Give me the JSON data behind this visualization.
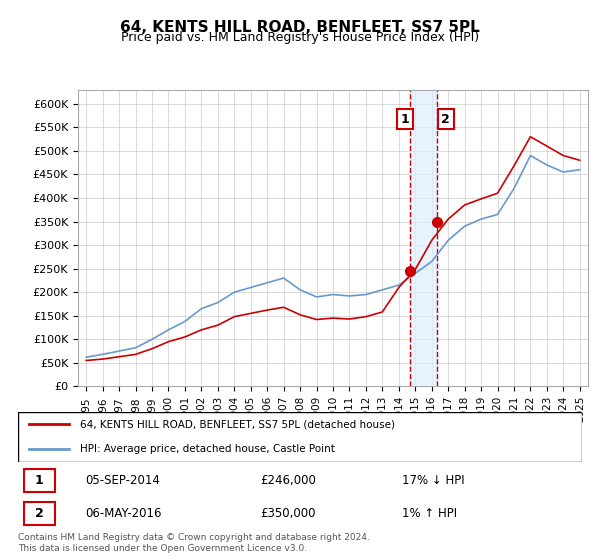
{
  "title": "64, KENTS HILL ROAD, BENFLEET, SS7 5PL",
  "subtitle": "Price paid vs. HM Land Registry's House Price Index (HPI)",
  "legend_label_red": "64, KENTS HILL ROAD, BENFLEET, SS7 5PL (detached house)",
  "legend_label_blue": "HPI: Average price, detached house, Castle Point",
  "footer": "Contains HM Land Registry data © Crown copyright and database right 2024.\nThis data is licensed under the Open Government Licence v3.0.",
  "sale1_date": "05-SEP-2014",
  "sale1_price": 246000,
  "sale1_pct": "17% ↓ HPI",
  "sale2_date": "06-MAY-2016",
  "sale2_price": 350000,
  "sale2_pct": "1% ↑ HPI",
  "ylim": [
    0,
    630000
  ],
  "yticks": [
    0,
    50000,
    100000,
    150000,
    200000,
    250000,
    300000,
    350000,
    400000,
    450000,
    500000,
    550000,
    600000
  ],
  "ytick_labels": [
    "£0",
    "£50K",
    "£100K",
    "£150K",
    "£200K",
    "£250K",
    "£300K",
    "£350K",
    "£400K",
    "£450K",
    "£500K",
    "£550K",
    "£600K"
  ],
  "color_red": "#cc0000",
  "color_blue": "#6699cc",
  "color_shade": "#ddeeff",
  "sale1_year": 2014.67,
  "sale2_year": 2016.35,
  "hpi_years": [
    1995,
    1996,
    1997,
    1998,
    1999,
    2000,
    2001,
    2002,
    2003,
    2004,
    2005,
    2006,
    2007,
    2008,
    2009,
    2010,
    2011,
    2012,
    2013,
    2014,
    2015,
    2016,
    2017,
    2018,
    2019,
    2020,
    2021,
    2022,
    2023,
    2024,
    2025
  ],
  "hpi_values": [
    62000,
    68000,
    75000,
    82000,
    100000,
    120000,
    138000,
    165000,
    178000,
    200000,
    210000,
    220000,
    230000,
    205000,
    190000,
    195000,
    192000,
    195000,
    205000,
    215000,
    240000,
    265000,
    310000,
    340000,
    355000,
    365000,
    420000,
    490000,
    470000,
    455000,
    460000
  ],
  "red_years": [
    1995,
    1996,
    1997,
    1998,
    1999,
    2000,
    2001,
    2002,
    2003,
    2004,
    2005,
    2006,
    2007,
    2008,
    2009,
    2010,
    2011,
    2012,
    2013,
    2014,
    2015,
    2016,
    2017,
    2018,
    2019,
    2020,
    2021,
    2022,
    2023,
    2024,
    2025
  ],
  "red_values": [
    55000,
    58000,
    63000,
    68000,
    80000,
    95000,
    105000,
    120000,
    130000,
    148000,
    155000,
    162000,
    168000,
    152000,
    142000,
    145000,
    143000,
    148000,
    158000,
    210000,
    248000,
    310000,
    355000,
    385000,
    398000,
    410000,
    468000,
    530000,
    510000,
    490000,
    480000
  ]
}
